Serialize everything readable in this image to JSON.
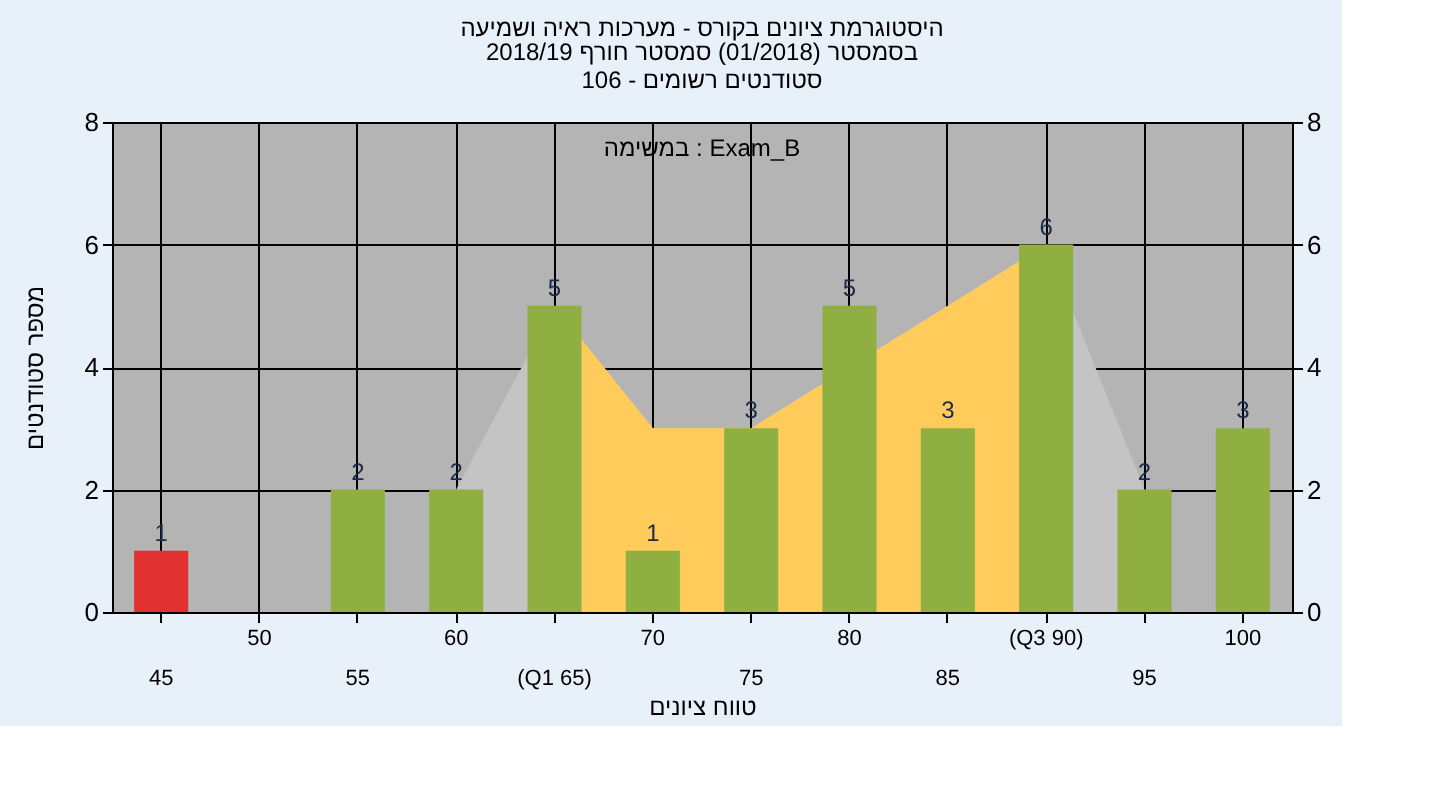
{
  "chart_data": {
    "type": "bar",
    "title": "היסטוגרמת ציונים בקורס - מערכות ראיה ושמיעה",
    "subtitle": "בסמסטר  (01/2018)  סמסטר חורף 2018/19\nסטודנטים רשומים - 106",
    "xlabel": "טווח ציונים",
    "ylabel": "מספר סטודנטים",
    "annotations": [
      "במשימה : Exam_B"
    ],
    "categories": [
      "45",
      "50",
      "55",
      "60",
      "(Q1 65)",
      "70",
      "75",
      "80",
      "85",
      "(Q3 90)",
      "95",
      "100"
    ],
    "series": [
      {
        "type": "area",
        "color": "#c4c4c4",
        "values": [
          null,
          null,
          null,
          2,
          5,
          3,
          3,
          null,
          5,
          6,
          2,
          null
        ]
      },
      {
        "type": "area",
        "color": "#ffcc5c",
        "values": [
          null,
          null,
          null,
          null,
          5,
          3,
          3,
          null,
          5,
          6,
          null,
          null
        ]
      },
      {
        "colors": [
          "#e03030",
          "#8fb040",
          "#8fb040",
          "#8fb040",
          "#8fb040",
          "#8fb040",
          "#8fb040",
          "#8fb040",
          "#8fb040",
          "#8fb040",
          "#8fb040",
          "#8fb040"
        ],
        "values": [
          1,
          0,
          2,
          2,
          5,
          1,
          3,
          5,
          3,
          6,
          2,
          3
        ],
        "value_labels": [
          "1",
          null,
          "2",
          "2",
          "5",
          "1",
          "3",
          "5",
          "3",
          "6",
          "2",
          "3"
        ]
      }
    ],
    "ylim": [
      0,
      8
    ],
    "yticks": [
      0,
      2,
      4,
      6,
      8
    ],
    "y2lim": [
      0,
      8
    ],
    "y2ticks": [
      0,
      2,
      4,
      6,
      8
    ],
    "grid": true
  }
}
